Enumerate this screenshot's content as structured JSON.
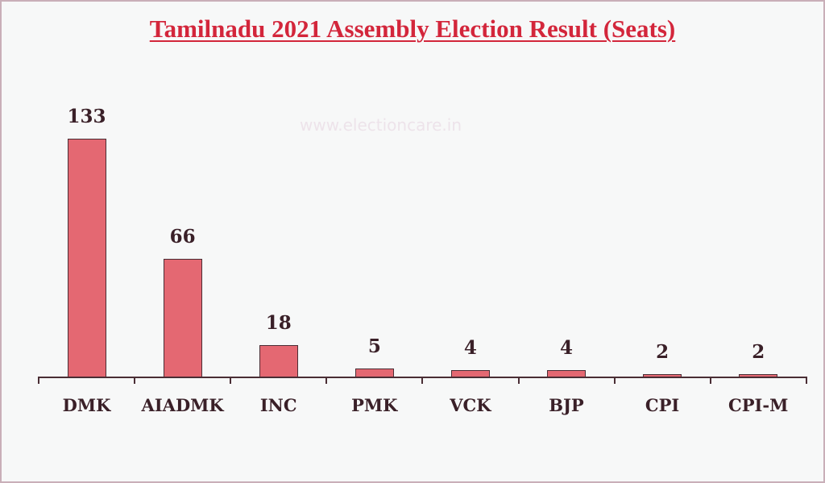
{
  "title": "Tamilnadu 2021 Assembly Election Result (Seats)",
  "watermark": "www.electioncare.in",
  "colors": {
    "bar": "#E46872",
    "bar_border": "#4A2E35",
    "title": "#D3263B",
    "text": "#3A2028",
    "background": "#F7F8F8"
  },
  "chart_data": {
    "type": "bar",
    "title": "Tamilnadu 2021 Assembly Election Result (Seats)",
    "xlabel": "",
    "ylabel": "",
    "categories": [
      "DMK",
      "AIADMK",
      "INC",
      "PMK",
      "VCK",
      "BJP",
      "CPI",
      "CPI-M"
    ],
    "values": [
      133,
      66,
      18,
      5,
      4,
      4,
      2,
      2
    ],
    "value_labels": [
      "133",
      "66",
      "18",
      "5",
      "4",
      "4",
      "2",
      "2"
    ],
    "ylim": [
      0,
      133
    ],
    "grid": false,
    "legend": "none",
    "data_labels": true
  }
}
